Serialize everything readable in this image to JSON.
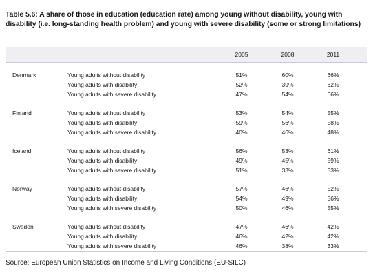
{
  "title": "Table 5.6: A share of those in education (education rate) among young without disability, young with disability (i.e. long-standing health problem) and young with severe disability (some or strong limitations)",
  "years": [
    "2005",
    "2008",
    "2011"
  ],
  "groups": [
    {
      "country": "Denmark",
      "rows": [
        {
          "label": "Young adults without disability",
          "values": [
            "51%",
            "60%",
            "66%"
          ]
        },
        {
          "label": "Young adults with disability",
          "values": [
            "52%",
            "39%",
            "62%"
          ]
        },
        {
          "label": "Young adults with severe disability",
          "values": [
            "47%",
            "54%",
            "66%"
          ]
        }
      ]
    },
    {
      "country": "Finland",
      "rows": [
        {
          "label": "Young adults without disability",
          "values": [
            "53%",
            "54%",
            "55%"
          ]
        },
        {
          "label": "Young adults with disability",
          "values": [
            "59%",
            "56%",
            "58%"
          ]
        },
        {
          "label": "Young adults with severe disability",
          "values": [
            "40%",
            "46%",
            "48%"
          ]
        }
      ]
    },
    {
      "country": "Iceland",
      "rows": [
        {
          "label": "Young adults without disability",
          "values": [
            "56%",
            "53%",
            "61%"
          ]
        },
        {
          "label": "Young adults with disability",
          "values": [
            "49%",
            "45%",
            "59%"
          ]
        },
        {
          "label": "Young adults with severe disability",
          "values": [
            "51%",
            "33%",
            "53%"
          ]
        }
      ]
    },
    {
      "country": "Norway",
      "rows": [
        {
          "label": "Young adults without disability",
          "values": [
            "57%",
            "46%",
            "52%"
          ]
        },
        {
          "label": "Young adults with disability",
          "values": [
            "54%",
            "49%",
            "56%"
          ]
        },
        {
          "label": "Young adults with severe disability",
          "values": [
            "50%",
            "46%",
            "55%"
          ]
        }
      ]
    },
    {
      "country": "Sweden",
      "rows": [
        {
          "label": "Young adults without disability",
          "values": [
            "47%",
            "46%",
            "42%"
          ]
        },
        {
          "label": "Young adults with disability",
          "values": [
            "46%",
            "42%",
            "42%"
          ]
        },
        {
          "label": "Young adults with severe disability",
          "values": [
            "46%",
            "38%",
            "33%"
          ]
        }
      ]
    }
  ],
  "source": "Source: European Union Statistics on Income and Living Conditions (EU-SILC)"
}
